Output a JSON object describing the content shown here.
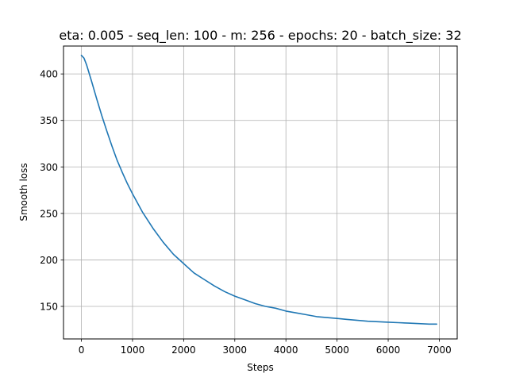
{
  "chart_data": {
    "type": "line",
    "title": "eta: 0.005 - seq_len: 100 - m: 256 - epochs: 20 - batch_size: 32",
    "xlabel": "Steps",
    "ylabel": "Smooth loss",
    "xlim": [
      -350,
      7350
    ],
    "ylim": [
      115,
      430
    ],
    "grid": true,
    "xticks": [
      0,
      1000,
      2000,
      3000,
      4000,
      5000,
      6000,
      7000
    ],
    "yticks": [
      150,
      200,
      250,
      300,
      350,
      400
    ],
    "series": [
      {
        "color": "#1f77b4",
        "x": [
          0,
          50,
          100,
          200,
          300,
          400,
          500,
          600,
          700,
          800,
          900,
          1000,
          1200,
          1400,
          1600,
          1800,
          2000,
          2200,
          2400,
          2600,
          2800,
          3000,
          3200,
          3400,
          3600,
          3800,
          4000,
          4200,
          4400,
          4600,
          4800,
          5000,
          5200,
          5400,
          5600,
          5800,
          6000,
          6200,
          6400,
          6600,
          6800,
          6950
        ],
        "y": [
          420,
          417,
          410,
          392,
          373,
          355,
          338,
          322,
          307,
          294,
          282,
          271,
          251,
          234,
          219,
          206,
          196,
          186,
          179,
          172,
          166,
          161,
          157,
          153,
          150,
          148,
          145,
          143,
          141,
          139,
          138,
          137,
          136,
          135,
          134,
          133.5,
          133,
          132.5,
          132,
          131.5,
          131,
          131
        ]
      }
    ]
  }
}
